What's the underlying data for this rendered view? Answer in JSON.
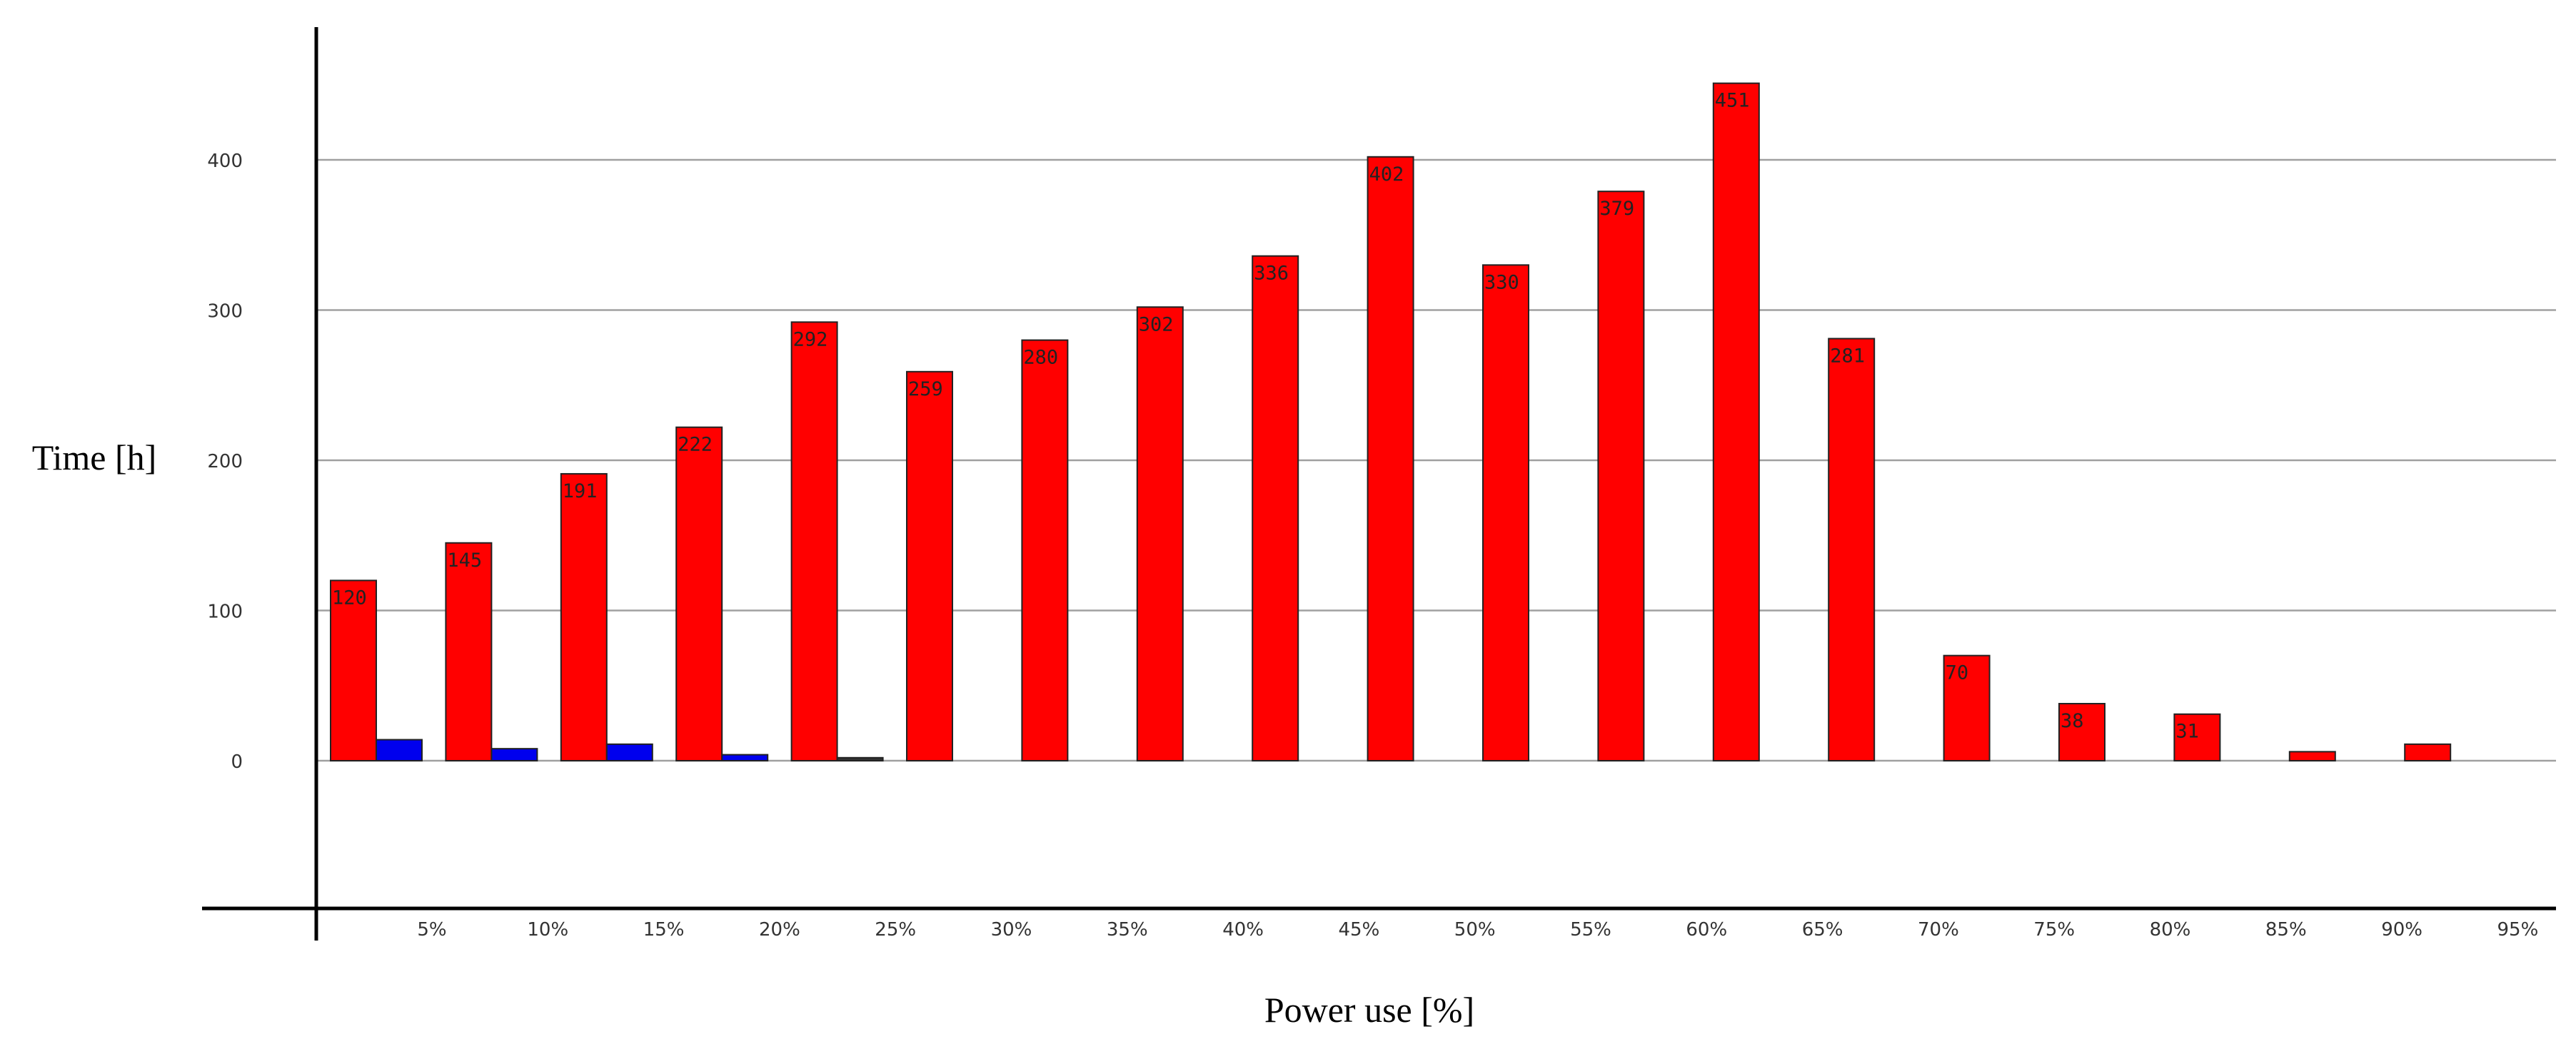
{
  "chart_data": {
    "type": "bar",
    "xlabel": "Power use [%]",
    "ylabel": "Time [h]",
    "x_tick_labels": [
      "5%",
      "10%",
      "15%",
      "20%",
      "25%",
      "30%",
      "35%",
      "40%",
      "45%",
      "50%",
      "55%",
      "60%",
      "65%",
      "70%",
      "75%",
      "80%",
      "85%",
      "90%",
      "95%"
    ],
    "y_ticks": [
      0,
      100,
      200,
      300,
      400
    ],
    "ylim": [
      -100,
      490
    ],
    "grid": true,
    "legend": "none",
    "series": [
      {
        "color": "#ff0000",
        "values": [
          120,
          145,
          191,
          222,
          292,
          259,
          280,
          302,
          336,
          402,
          330,
          379,
          451,
          281,
          70,
          38,
          31,
          6,
          11
        ],
        "labels": [
          "120",
          "145",
          "191",
          "222",
          "292",
          "259",
          "280",
          "302",
          "336",
          "402",
          "330",
          "379",
          "451",
          "281",
          "70",
          "38",
          "31",
          "",
          ""
        ]
      },
      {
        "color": "#0000ee",
        "values": [
          14,
          8,
          11,
          4,
          2
        ],
        "labels": [
          "",
          "",
          "",
          "",
          ""
        ]
      }
    ]
  }
}
